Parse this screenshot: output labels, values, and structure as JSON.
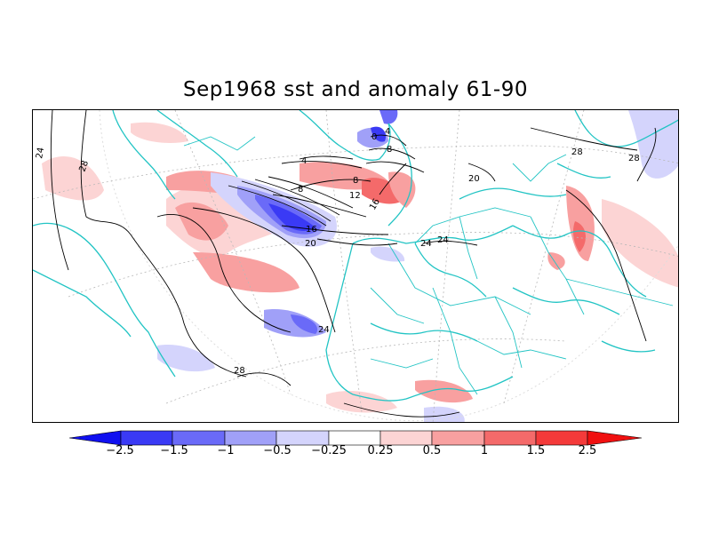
{
  "title": "Sep1968 sst and anomaly 61-90",
  "colors": {
    "coast": "#22c4c4",
    "contour": "#000000",
    "neg": [
      "#1010f0",
      "#3a3af5",
      "#6a6af8",
      "#a0a0f8",
      "#d4d4fc"
    ],
    "pos": [
      "#fcd4d4",
      "#f8a0a0",
      "#f46a6a",
      "#f43a3a",
      "#f01010"
    ]
  },
  "colorbar": {
    "labels": [
      "-2.5",
      "-1.5",
      "-1",
      "-0.5",
      "-0.25",
      "0.25",
      "0.5",
      "1",
      "1.5",
      "2.5"
    ]
  },
  "contour_labels": [
    "24",
    "28",
    "4",
    "8",
    "8",
    "12",
    "16",
    "16",
    "20",
    "0",
    "4",
    "8",
    "20",
    "24",
    "24",
    "28",
    "28",
    "28",
    "24"
  ]
}
